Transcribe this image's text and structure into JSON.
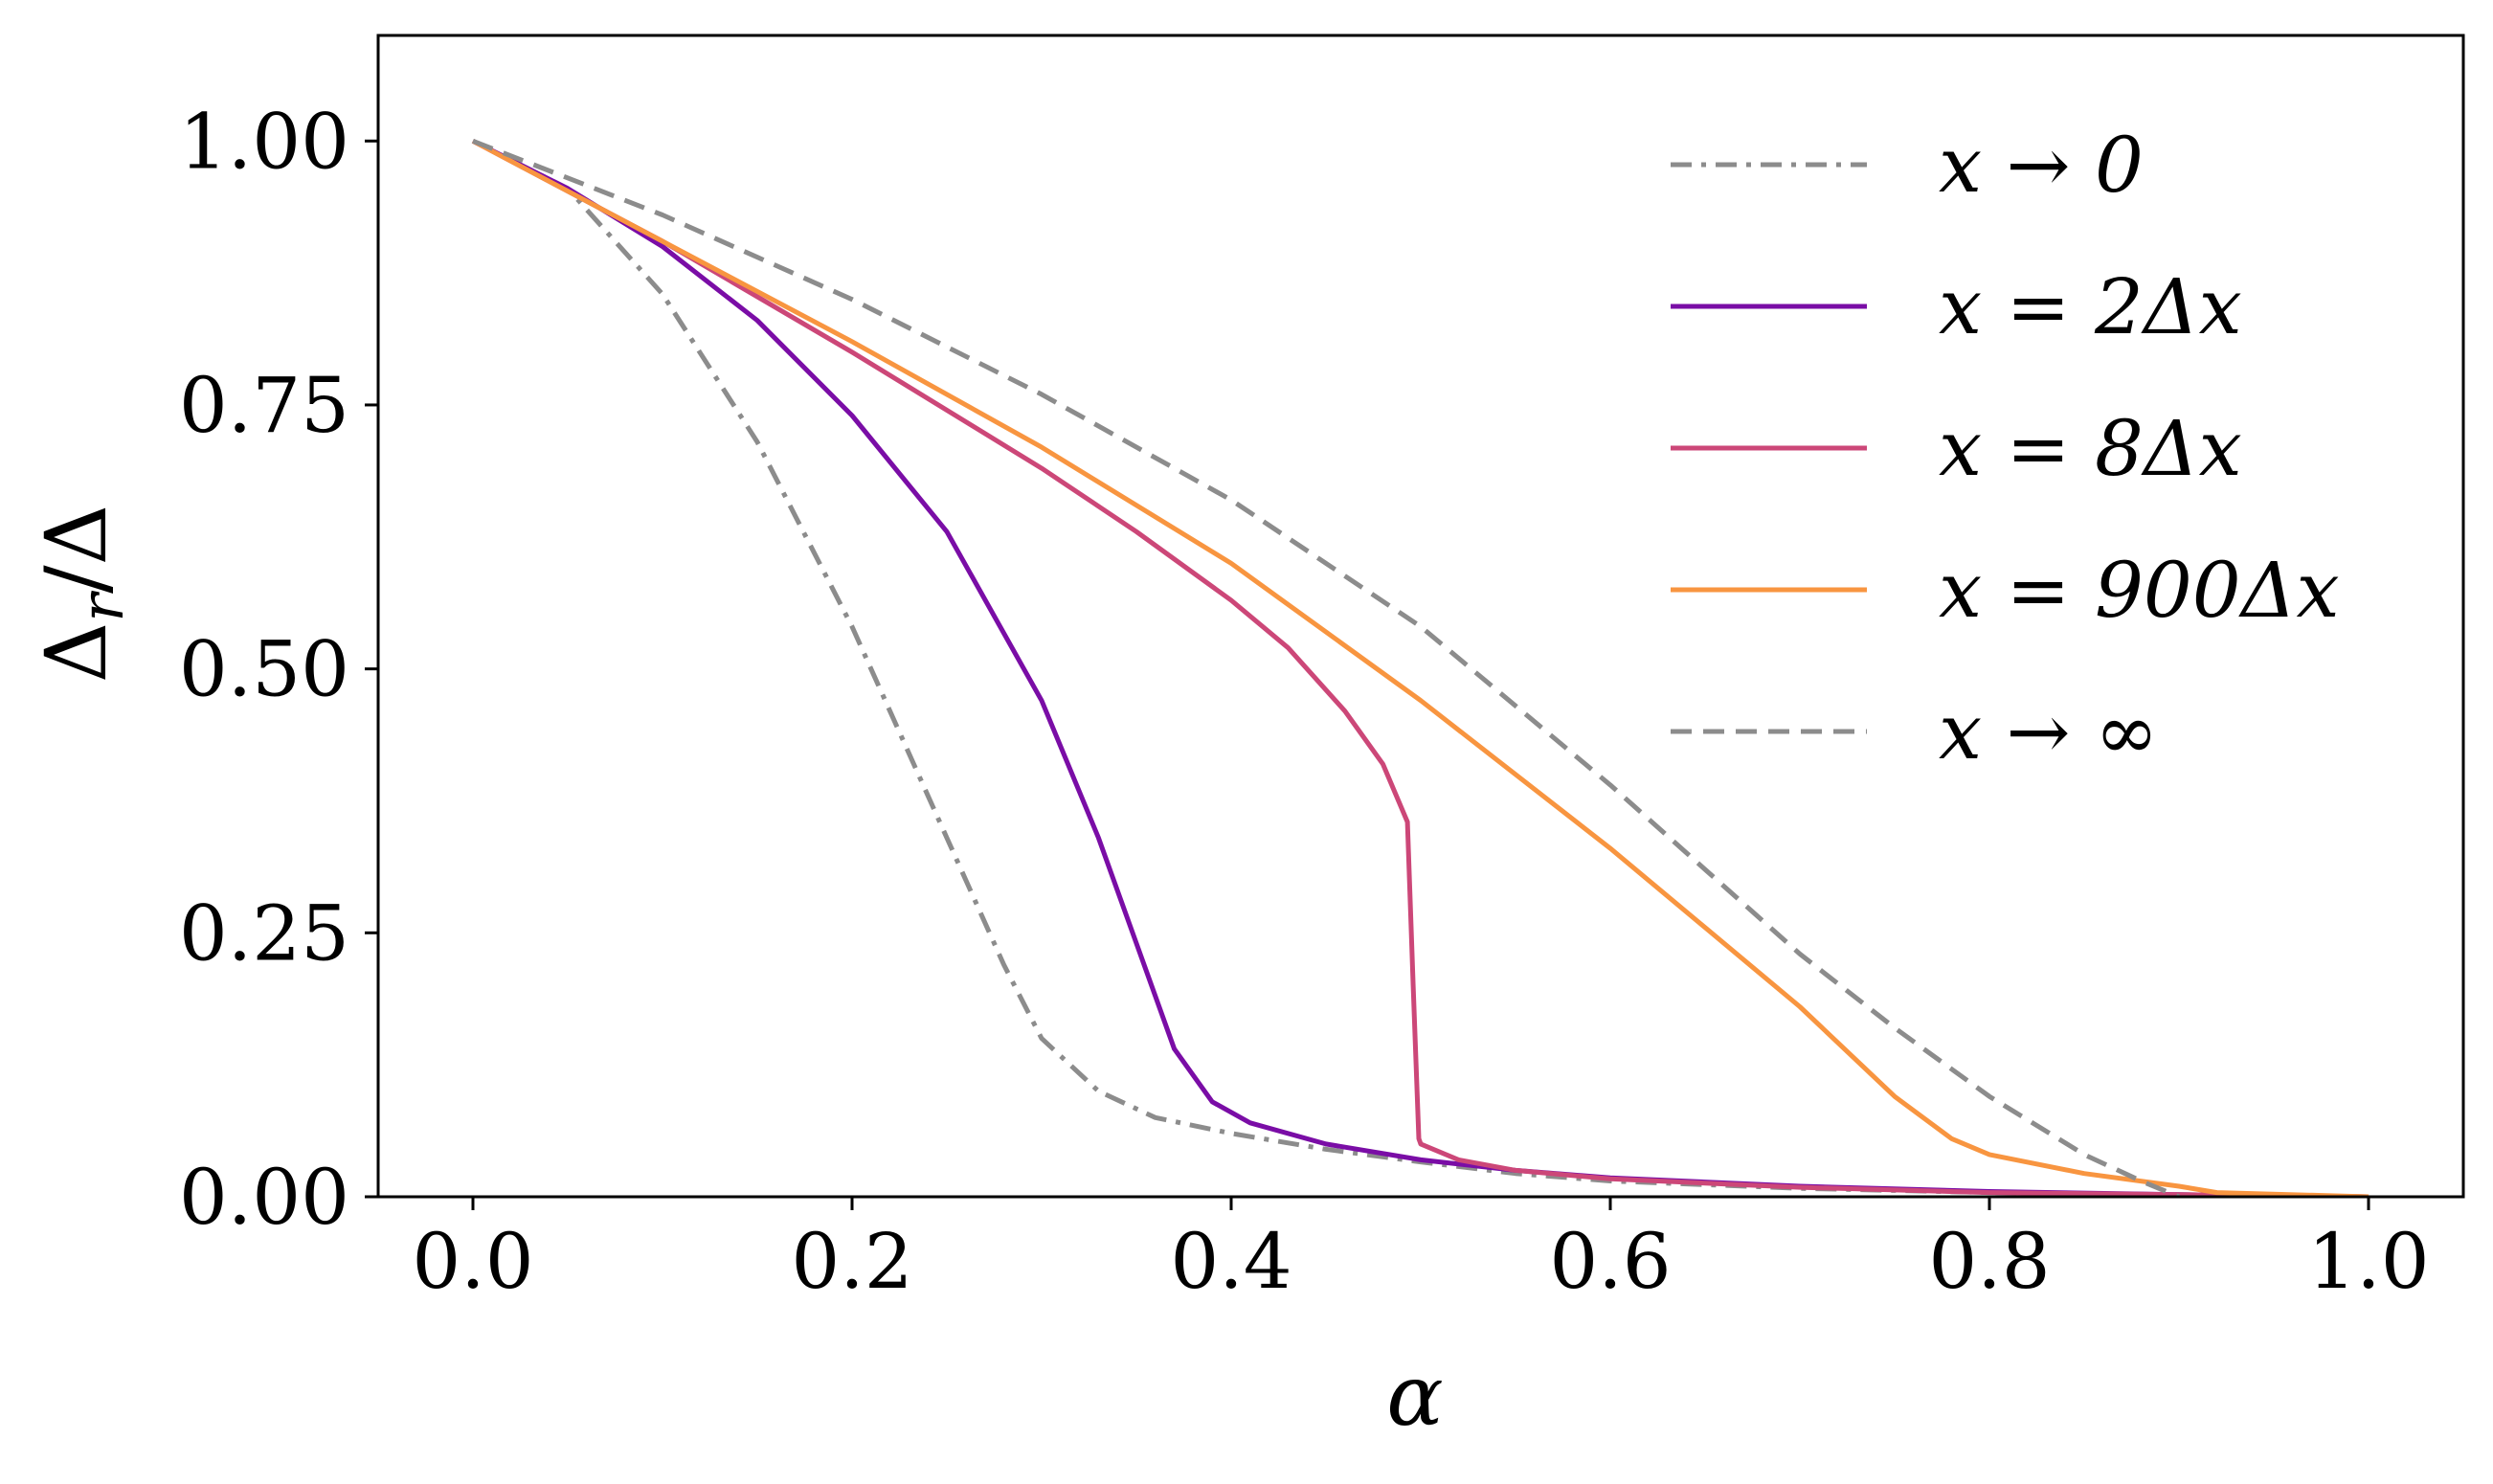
{
  "chart_data": {
    "type": "line",
    "title": "",
    "xlabel": "α",
    "ylabel": "Δr/Δ",
    "ylabel_main": "Δ",
    "ylabel_sub": "r",
    "ylabel_tail": "/Δ",
    "xlim": [
      -0.05,
      1.05
    ],
    "ylim": [
      0.0,
      1.1
    ],
    "xticks": [
      0.0,
      0.2,
      0.4,
      0.6,
      0.8,
      1.0
    ],
    "xtick_labels": [
      "0.0",
      "0.2",
      "0.4",
      "0.6",
      "0.8",
      "1.0"
    ],
    "yticks": [
      0.0,
      0.25,
      0.5,
      0.75,
      1.0
    ],
    "ytick_labels": [
      "0.00",
      "0.25",
      "0.50",
      "0.75",
      "1.00"
    ],
    "grid": false,
    "legend_position": "top-right",
    "series": [
      {
        "name": "x → 0",
        "color": "#8c8c8c",
        "style": "dashdot",
        "x": [
          0.0,
          0.05,
          0.1,
          0.15,
          0.2,
          0.25,
          0.28,
          0.3,
          0.33,
          0.36,
          0.4,
          0.45,
          0.5,
          0.55,
          0.6,
          0.7,
          0.8,
          0.9,
          1.0
        ],
        "y": [
          1.0,
          0.955,
          0.855,
          0.715,
          0.54,
          0.34,
          0.22,
          0.15,
          0.1,
          0.075,
          0.06,
          0.045,
          0.033,
          0.022,
          0.015,
          0.008,
          0.004,
          0.002,
          0.0
        ]
      },
      {
        "name": "x = 2Δx",
        "color": "#7a0da6",
        "style": "solid",
        "x": [
          0.0,
          0.05,
          0.1,
          0.15,
          0.2,
          0.25,
          0.3,
          0.33,
          0.35,
          0.37,
          0.39,
          0.41,
          0.45,
          0.5,
          0.55,
          0.6,
          0.7,
          0.8,
          0.9,
          1.0
        ],
        "y": [
          1.0,
          0.955,
          0.9,
          0.83,
          0.74,
          0.63,
          0.47,
          0.34,
          0.24,
          0.14,
          0.09,
          0.07,
          0.05,
          0.035,
          0.025,
          0.018,
          0.01,
          0.005,
          0.002,
          0.0
        ]
      },
      {
        "name": "x = 8Δx",
        "color": "#cc4778",
        "style": "solid",
        "x": [
          0.0,
          0.1,
          0.2,
          0.3,
          0.35,
          0.4,
          0.43,
          0.46,
          0.48,
          0.493,
          0.496,
          0.499,
          0.5,
          0.52,
          0.55,
          0.6,
          0.7,
          0.8,
          0.9,
          1.0
        ],
        "y": [
          1.0,
          0.905,
          0.8,
          0.69,
          0.63,
          0.565,
          0.52,
          0.46,
          0.41,
          0.355,
          0.2,
          0.055,
          0.05,
          0.035,
          0.025,
          0.017,
          0.009,
          0.004,
          0.002,
          0.0
        ]
      },
      {
        "name": "x = 900Δx",
        "color": "#f89540",
        "style": "solid",
        "x": [
          0.0,
          0.1,
          0.2,
          0.3,
          0.4,
          0.5,
          0.6,
          0.7,
          0.75,
          0.78,
          0.8,
          0.85,
          0.9,
          0.92,
          1.0
        ],
        "y": [
          1.0,
          0.905,
          0.81,
          0.71,
          0.6,
          0.47,
          0.33,
          0.18,
          0.095,
          0.055,
          0.04,
          0.022,
          0.01,
          0.004,
          0.0
        ]
      },
      {
        "name": "x → ∞",
        "color": "#8c8c8c",
        "style": "dashed",
        "x": [
          0.0,
          0.1,
          0.2,
          0.3,
          0.4,
          0.5,
          0.6,
          0.7,
          0.75,
          0.8,
          0.85,
          0.88,
          0.9
        ],
        "y": [
          1.0,
          0.93,
          0.85,
          0.76,
          0.66,
          0.54,
          0.39,
          0.23,
          0.16,
          0.095,
          0.04,
          0.015,
          0.0
        ]
      }
    ]
  }
}
